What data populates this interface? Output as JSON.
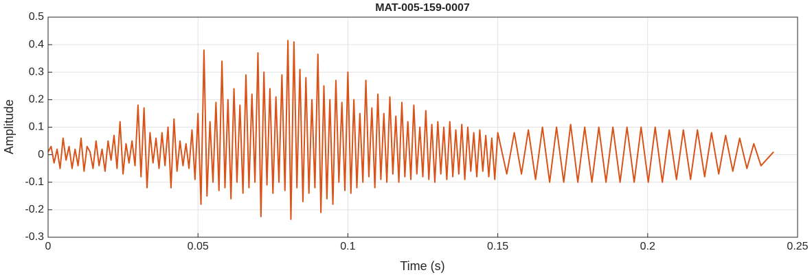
{
  "chart_data": {
    "type": "line",
    "title": "MAT-005-159-0007",
    "xlabel": "Time (s)",
    "ylabel": "Amplitude",
    "xlim": [
      0,
      0.25
    ],
    "xticks": [
      0,
      0.05,
      0.1,
      0.15,
      0.2,
      0.25
    ],
    "ylim": [
      -0.3,
      0.5
    ],
    "yticks": [
      -0.3,
      -0.2,
      -0.1,
      0,
      0.1,
      0.2,
      0.3,
      0.4,
      0.5
    ],
    "grid": true,
    "color": "#d95319",
    "x": [
      0,
      0.001,
      0.002,
      0.003,
      0.004,
      0.005,
      0.006,
      0.007,
      0.008,
      0.009,
      0.01,
      0.011,
      0.012,
      0.013,
      0.014,
      0.015,
      0.016,
      0.017,
      0.018,
      0.019,
      0.02,
      0.021,
      0.022,
      0.023,
      0.024,
      0.025,
      0.026,
      0.027,
      0.028,
      0.029,
      0.03,
      0.031,
      0.032,
      0.033,
      0.034,
      0.035,
      0.036,
      0.037,
      0.038,
      0.039,
      0.04,
      0.041,
      0.042,
      0.043,
      0.044,
      0.045,
      0.046,
      0.047,
      0.048,
      0.049,
      0.05,
      0.051,
      0.052,
      0.053,
      0.054,
      0.055,
      0.056,
      0.057,
      0.058,
      0.059,
      0.06,
      0.061,
      0.062,
      0.063,
      0.064,
      0.065,
      0.066,
      0.067,
      0.068,
      0.069,
      0.07,
      0.071,
      0.072,
      0.073,
      0.074,
      0.075,
      0.076,
      0.077,
      0.078,
      0.079,
      0.08,
      0.081,
      0.082,
      0.083,
      0.084,
      0.085,
      0.086,
      0.087,
      0.088,
      0.089,
      0.09,
      0.091,
      0.092,
      0.093,
      0.094,
      0.095,
      0.096,
      0.097,
      0.098,
      0.099,
      0.1,
      0.101,
      0.102,
      0.103,
      0.104,
      0.105,
      0.106,
      0.107,
      0.108,
      0.109,
      0.11,
      0.111,
      0.112,
      0.113,
      0.114,
      0.115,
      0.116,
      0.117,
      0.118,
      0.119,
      0.12,
      0.121,
      0.122,
      0.123,
      0.124,
      0.125,
      0.126,
      0.127,
      0.128,
      0.129,
      0.13,
      0.131,
      0.132,
      0.133,
      0.134,
      0.135,
      0.136,
      0.137,
      0.138,
      0.139,
      0.14,
      0.141,
      0.142,
      0.143,
      0.144,
      0.145,
      0.146,
      0.147,
      0.148,
      0.149,
      0.15,
      0.153,
      0.1555,
      0.1579,
      0.1602,
      0.1626,
      0.1649,
      0.1673,
      0.1696,
      0.172,
      0.1743,
      0.1767,
      0.179,
      0.1814,
      0.1837,
      0.1861,
      0.1884,
      0.1908,
      0.1931,
      0.1955,
      0.1978,
      0.2002,
      0.2025,
      0.2049,
      0.2072,
      0.2096,
      0.2119,
      0.2143,
      0.2166,
      0.219,
      0.2213,
      0.2237,
      0.226,
      0.2284,
      0.2307,
      0.2331,
      0.2354,
      0.2378,
      0.242
    ],
    "values": [
      0.01,
      0.03,
      -0.03,
      0.02,
      -0.05,
      0.06,
      -0.02,
      0.03,
      -0.05,
      0.02,
      -0.04,
      0.06,
      -0.06,
      0.03,
      0.01,
      -0.05,
      0.05,
      -0.04,
      0.02,
      -0.06,
      0.05,
      -0.02,
      0.07,
      -0.05,
      0.12,
      -0.07,
      0.04,
      -0.03,
      0.05,
      -0.04,
      0.18,
      -0.08,
      0.17,
      -0.12,
      0.08,
      -0.03,
      0.06,
      -0.05,
      0.08,
      -0.04,
      0.1,
      -0.12,
      0.13,
      -0.06,
      0.05,
      -0.04,
      0.04,
      -0.05,
      0.09,
      -0.09,
      0.15,
      -0.18,
      0.38,
      -0.15,
      0.12,
      -0.1,
      0.19,
      -0.13,
      0.34,
      -0.12,
      0.2,
      -0.16,
      0.24,
      -0.1,
      0.18,
      -0.14,
      0.29,
      -0.12,
      0.22,
      -0.1,
      0.37,
      -0.225,
      0.3,
      -0.11,
      0.24,
      -0.14,
      0.21,
      -0.1,
      0.29,
      -0.13,
      0.415,
      -0.235,
      0.41,
      -0.12,
      0.31,
      -0.17,
      0.28,
      -0.14,
      0.2,
      -0.12,
      0.365,
      -0.21,
      0.25,
      -0.16,
      0.2,
      -0.18,
      0.27,
      -0.1,
      0.19,
      -0.13,
      0.3,
      -0.14,
      0.2,
      -0.12,
      0.15,
      -0.1,
      0.27,
      -0.08,
      0.17,
      -0.12,
      0.22,
      -0.09,
      0.15,
      -0.1,
      0.21,
      -0.07,
      0.14,
      -0.1,
      0.19,
      -0.08,
      0.12,
      -0.09,
      0.18,
      -0.07,
      0.1,
      -0.08,
      0.16,
      -0.09,
      0.11,
      -0.1,
      0.12,
      -0.07,
      0.1,
      -0.09,
      0.12,
      -0.08,
      0.09,
      -0.07,
      0.11,
      -0.09,
      0.1,
      -0.06,
      0.08,
      -0.08,
      0.09,
      -0.06,
      0.07,
      -0.08,
      0.06,
      -0.09,
      0.08,
      -0.07,
      0.08,
      -0.07,
      0.09,
      -0.09,
      0.1,
      -0.1,
      0.1,
      -0.1,
      0.11,
      -0.1,
      0.1,
      -0.1,
      0.1,
      -0.1,
      0.1,
      -0.1,
      0.1,
      -0.1,
      0.1,
      -0.1,
      0.1,
      -0.1,
      0.09,
      -0.09,
      0.09,
      -0.09,
      0.09,
      -0.08,
      0.08,
      -0.07,
      0.07,
      -0.06,
      0.06,
      -0.05,
      0.04,
      -0.04,
      0.01
    ]
  }
}
